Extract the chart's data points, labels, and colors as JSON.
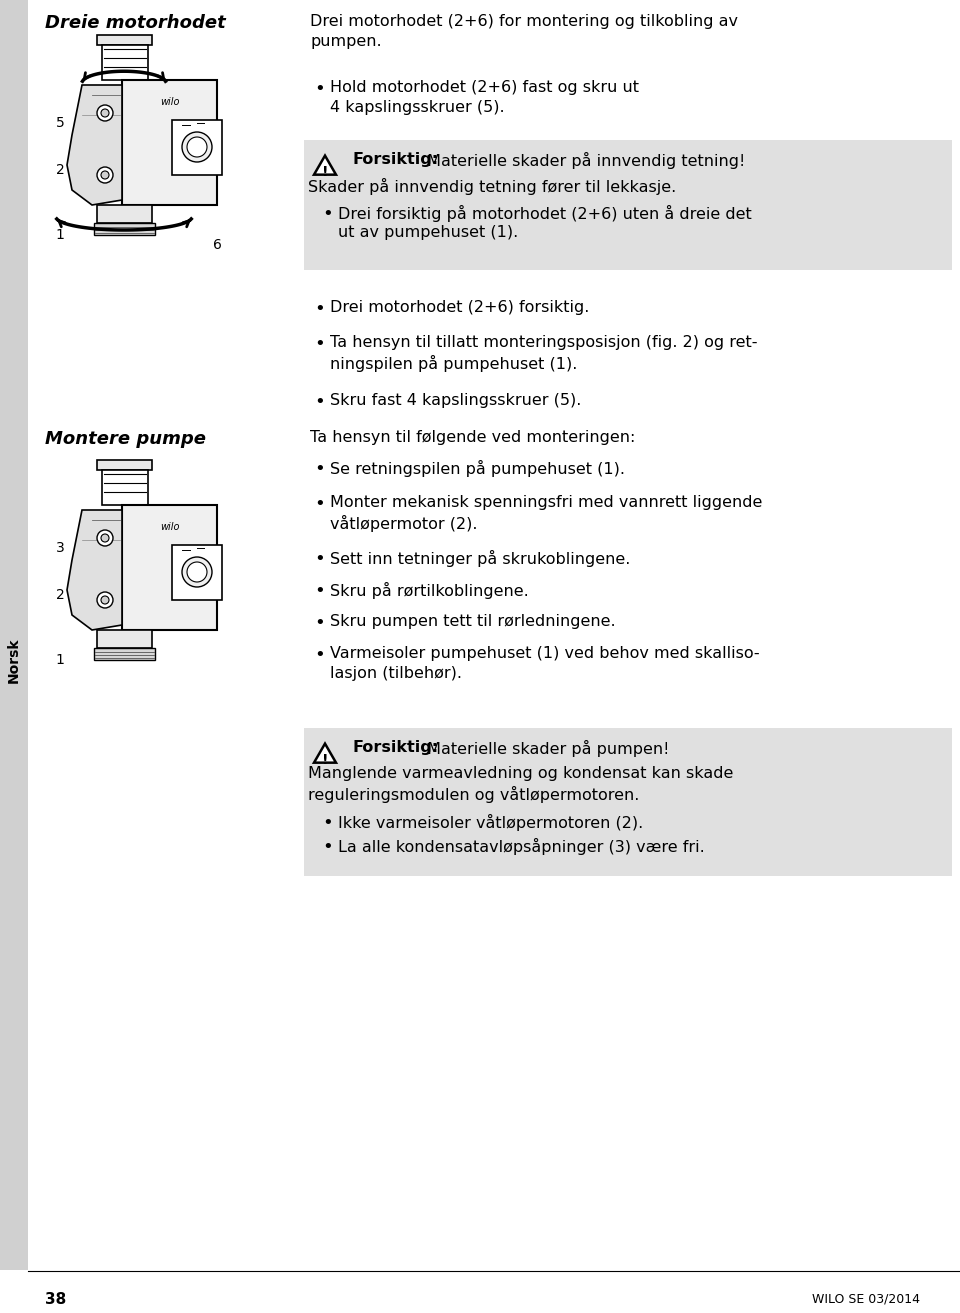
{
  "bg_color": "#ffffff",
  "sidebar_color": "#d0d0d0",
  "sidebar_text": "Norsk",
  "page_number": "38",
  "page_ref": "WILO SE 03/2014",
  "section1_heading": "Dreie motorhodet",
  "section1_intro_line1": "Drei motorhodet (2+6) for montering og tilkobling av",
  "section1_intro_line2": "pumpen.",
  "section1_bullet1_line1": "Hold motorhodet (2+6) fast og skru ut",
  "section1_bullet1_line2": "4 kapslingsskruer (5).",
  "warning1_bold": "Forsiktig:",
  "warning1_rest": " Materielle skader på innvendig tetning!",
  "warning1_line2": "Skader på innvendig tetning fører til lekkasje.",
  "warning1_b_line1": "Drei forsiktig på motorhodet (2+6) uten å dreie det",
  "warning1_b_line2": "ut av pumpehuset (1).",
  "section1_b2": "Drei motorhodet (2+6) forsiktig.",
  "section1_b3_line1": "Ta hensyn til tillatt monteringsposisjon (fig. 2) og ret-",
  "section1_b3_line2": "ningspilen på pumpehuset (1).",
  "section1_b4": "Skru fast 4 kapslingsskruer (5).",
  "section2_heading": "Montere pumpe",
  "section2_intro": "Ta hensyn til følgende ved monteringen:",
  "section2_b1": "Se retningspilen på pumpehuset (1).",
  "section2_b2_line1": "Monter mekanisk spenningsfri med vannrett liggende",
  "section2_b2_line2": "våtløpermotor (2).",
  "section2_b3": "Sett inn tetninger på skrukoblingene.",
  "section2_b4": "Skru på rørtilkoblingene.",
  "section2_b5": "Skru pumpen tett til rørledningene.",
  "section2_b6_line1": "Varmeisoler pumpehuset (1) ved behov med skalliso-",
  "section2_b6_line2": "lasjon (tilbehør).",
  "warning2_bold": "Forsiktig:",
  "warning2_rest": " Materielle skader på pumpen!",
  "warning2_line2": "Manglende varmeavledning og kondensat kan skade",
  "warning2_line3": "reguleringsmodulen og våtløpermotoren.",
  "warning2_b1": "Ikke varmeisoler våtløpermotoren (2).",
  "warning2_b2": "La alle kondensatavløpsåpninger (3) være fri.",
  "warn_bg": "#e0e0e0",
  "text_col": "#000000",
  "label_col": "#000000"
}
